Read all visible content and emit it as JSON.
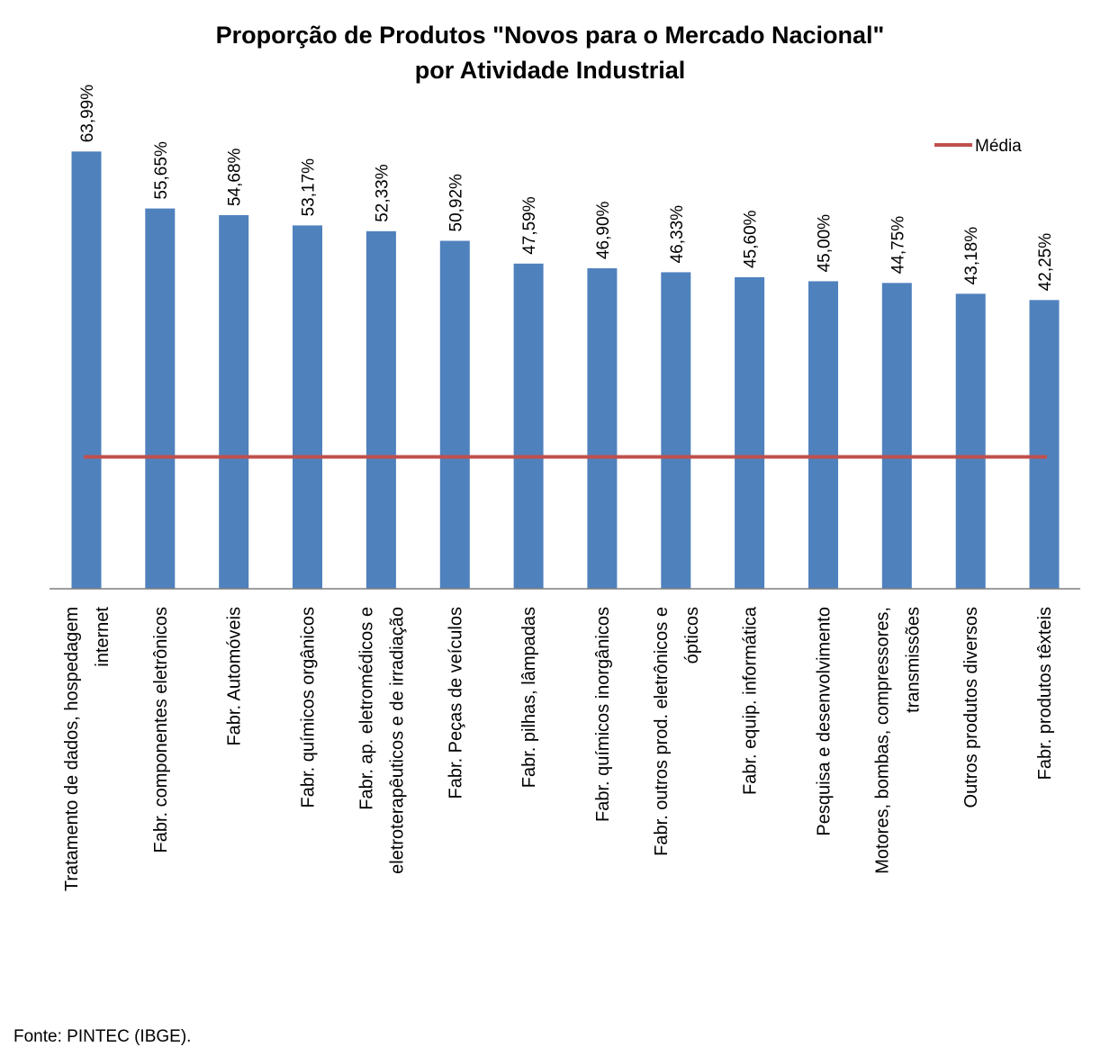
{
  "chart_data": {
    "type": "bar",
    "title_lines": [
      "Proporção de Produtos \"Novos para o Mercado Nacional\"",
      "por Atividade Industrial"
    ],
    "categories": [
      [
        "Tratamento de dados, hospedagem",
        "internet"
      ],
      [
        "Fabr. componentes eletrônicos"
      ],
      [
        "Fabr. Automóveis"
      ],
      [
        "Fabr. químicos orgânicos"
      ],
      [
        "Fabr. ap. eletromédicos e",
        "eletroterapêuticos e de irradiação"
      ],
      [
        "Fabr. Peças de veículos"
      ],
      [
        "Fabr. pilhas, lâmpadas"
      ],
      [
        "Fabr. químicos inorgânicos"
      ],
      [
        "Fabr. outros prod. eletrônicos e",
        "ópticos"
      ],
      [
        "Fabr. equip. informática"
      ],
      [
        "Pesquisa e desenvolvimento"
      ],
      [
        "Motores, bombas, compressores,",
        "transmissões"
      ],
      [
        "Outros produtos diversos"
      ],
      [
        "Fabr. produtos têxteis"
      ]
    ],
    "series": [
      {
        "values": [
          63.99,
          55.65,
          54.68,
          53.17,
          52.33,
          50.92,
          47.59,
          46.9,
          46.33,
          45.6,
          45.0,
          44.75,
          43.18,
          42.25
        ],
        "labels": [
          "63,99%",
          "55,65%",
          "54,68%",
          "53,17%",
          "52,33%",
          "50,92%",
          "47,59%",
          "46,90%",
          "46,33%",
          "45,60%",
          "45,00%",
          "44,75%",
          "43,18%",
          "42,25%"
        ],
        "color": "#4F81BD"
      },
      {
        "name": "Média",
        "type": "line",
        "value": 19.3,
        "color": "#C0504D"
      }
    ],
    "ylim": [
      0,
      70
    ],
    "grid": false,
    "legend_position": "top-right",
    "xlabel": "",
    "ylabel": ""
  },
  "source": "Fonte: PINTEC (IBGE)."
}
